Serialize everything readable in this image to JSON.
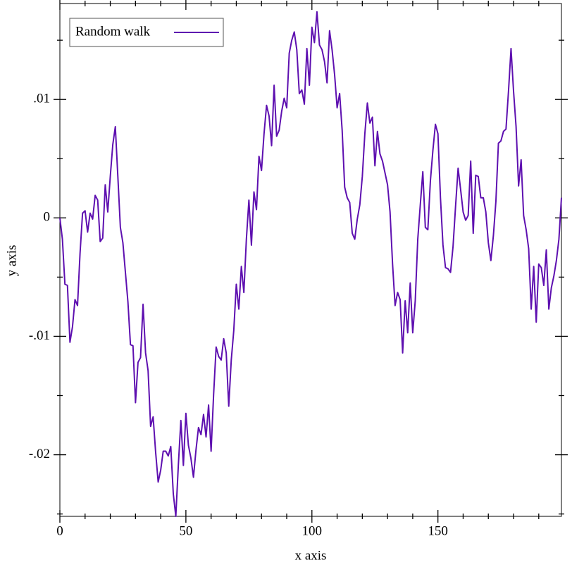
{
  "chart_data": {
    "type": "line",
    "xlabel": "x axis",
    "ylabel": "y axis",
    "x": [
      0,
      1,
      2,
      3,
      4,
      5,
      6,
      7,
      8,
      9,
      10,
      11,
      12,
      13,
      14,
      15,
      16,
      17,
      18,
      19,
      20,
      21,
      22,
      23,
      24,
      25,
      26,
      27,
      28,
      29,
      30,
      31,
      32,
      33,
      34,
      35,
      36,
      37,
      38,
      39,
      40,
      41,
      42,
      43,
      44,
      45,
      46,
      47,
      48,
      49,
      50,
      51,
      52,
      53,
      54,
      55,
      56,
      57,
      58,
      59,
      60,
      61,
      62,
      63,
      64,
      65,
      66,
      67,
      68,
      69,
      70,
      71,
      72,
      73,
      74,
      75,
      76,
      77,
      78,
      79,
      80,
      81,
      82,
      83,
      84,
      85,
      86,
      87,
      88,
      89,
      90,
      91,
      92,
      93,
      94,
      95,
      96,
      97,
      98,
      99,
      100,
      101,
      102,
      103,
      104,
      105,
      106,
      107,
      108,
      109,
      110,
      111,
      112,
      113,
      114,
      115,
      116,
      117,
      118,
      119,
      120,
      121,
      122,
      123,
      124,
      125,
      126,
      127,
      128,
      129,
      130,
      131,
      132,
      133,
      134,
      135,
      136,
      137,
      138,
      139,
      140,
      141,
      142,
      143,
      144,
      145,
      146,
      147,
      148,
      149,
      150,
      151,
      152,
      153,
      154,
      155,
      156,
      157,
      158,
      159,
      160,
      161,
      162,
      163,
      164,
      165,
      166,
      167,
      168,
      169,
      170,
      171,
      172,
      173,
      174,
      175,
      176,
      177,
      178,
      179,
      180,
      181,
      182,
      183,
      184,
      185,
      186,
      187,
      188,
      189,
      190,
      191,
      192,
      193,
      194,
      195,
      196,
      197,
      198,
      199
    ],
    "series": [
      {
        "name": "Random walk",
        "color": "#5e10b0",
        "values": [
          0,
          -0.0018,
          -0.0056,
          -0.0057,
          -0.0105,
          -0.0092,
          -0.0069,
          -0.0074,
          -0.003,
          0.0004,
          0.0006,
          -0.0012,
          0.0004,
          -0.0001,
          0.0019,
          0.0015,
          -0.002,
          -0.0017,
          0.0028,
          0.0005,
          0.0035,
          0.0062,
          0.0077,
          0.0035,
          -0.0008,
          -0.0021,
          -0.0046,
          -0.0071,
          -0.0107,
          -0.0108,
          -0.0156,
          -0.0122,
          -0.0118,
          -0.0073,
          -0.0114,
          -0.0129,
          -0.0176,
          -0.0168,
          -0.0198,
          -0.0223,
          -0.0213,
          -0.0197,
          -0.0197,
          -0.0201,
          -0.0193,
          -0.0233,
          -0.0252,
          -0.0209,
          -0.0171,
          -0.0209,
          -0.0165,
          -0.0192,
          -0.0203,
          -0.0219,
          -0.0196,
          -0.0177,
          -0.0183,
          -0.0166,
          -0.0185,
          -0.0158,
          -0.0197,
          -0.0149,
          -0.0109,
          -0.0117,
          -0.012,
          -0.0102,
          -0.0114,
          -0.0159,
          -0.012,
          -0.0095,
          -0.0056,
          -0.0077,
          -0.0041,
          -0.0063,
          -0.0018,
          0.0015,
          -0.0023,
          0.0022,
          0.0007,
          0.0052,
          0.004,
          0.0071,
          0.0095,
          0.0086,
          0.0061,
          0.0112,
          0.0069,
          0.0074,
          0.009,
          0.0101,
          0.0093,
          0.0139,
          0.015,
          0.0157,
          0.0142,
          0.0105,
          0.0108,
          0.0096,
          0.0143,
          0.0112,
          0.0161,
          0.0148,
          0.0174,
          0.0146,
          0.0142,
          0.0132,
          0.0114,
          0.0158,
          0.0142,
          0.0121,
          0.0093,
          0.0105,
          0.0074,
          0.0026,
          0.0017,
          0.0013,
          -0.0013,
          -0.0018,
          -0.0001,
          0.0011,
          0.0035,
          0.0071,
          0.0097,
          0.008,
          0.0085,
          0.0044,
          0.0073,
          0.0054,
          0.0048,
          0.0038,
          0.0028,
          0.0005,
          -0.0039,
          -0.0074,
          -0.0063,
          -0.0069,
          -0.0114,
          -0.007,
          -0.0097,
          -0.0055,
          -0.0097,
          -0.007,
          -0.0018,
          0.0011,
          0.0039,
          -0.0008,
          -0.001,
          0.0031,
          0.0057,
          0.0079,
          0.0071,
          0.0017,
          -0.0023,
          -0.0042,
          -0.0043,
          -0.0046,
          -0.0024,
          0.001,
          0.0042,
          0.0024,
          0.0005,
          -0.0002,
          0.0002,
          0.0048,
          -0.0013,
          0.0036,
          0.0035,
          0.0017,
          0.0017,
          0.0005,
          -0.0021,
          -0.0036,
          -0.0015,
          0.0014,
          0.0063,
          0.0065,
          0.0073,
          0.0075,
          0.0107,
          0.0143,
          0.0107,
          0.0077,
          0.0027,
          0.0049,
          0.0002,
          -0.001,
          -0.0026,
          -0.0077,
          -0.0041,
          -0.0088,
          -0.0039,
          -0.0042,
          -0.0057,
          -0.0027,
          -0.0077,
          -0.0059,
          -0.0049,
          -0.0036,
          -0.0018,
          0.0017
        ]
      }
    ],
    "xlim": [
      0,
      199
    ],
    "ylim": [
      -0.0252,
      0.0181
    ],
    "xticks": [
      0,
      50,
      100,
      150
    ],
    "xticks_minor": [
      10,
      20,
      30,
      40,
      60,
      70,
      80,
      90,
      110,
      120,
      130,
      140,
      160,
      170,
      180,
      190
    ],
    "yticks": [
      {
        "value": -0.02,
        "label": "-.02"
      },
      {
        "value": -0.01,
        "label": "-.01"
      },
      0,
      {
        "value": 0.01,
        "label": ".01"
      }
    ],
    "yticks_minor": [
      -0.025,
      -0.015,
      -0.005,
      0.005,
      0.015
    ],
    "legend": "top-left",
    "grid": false
  }
}
